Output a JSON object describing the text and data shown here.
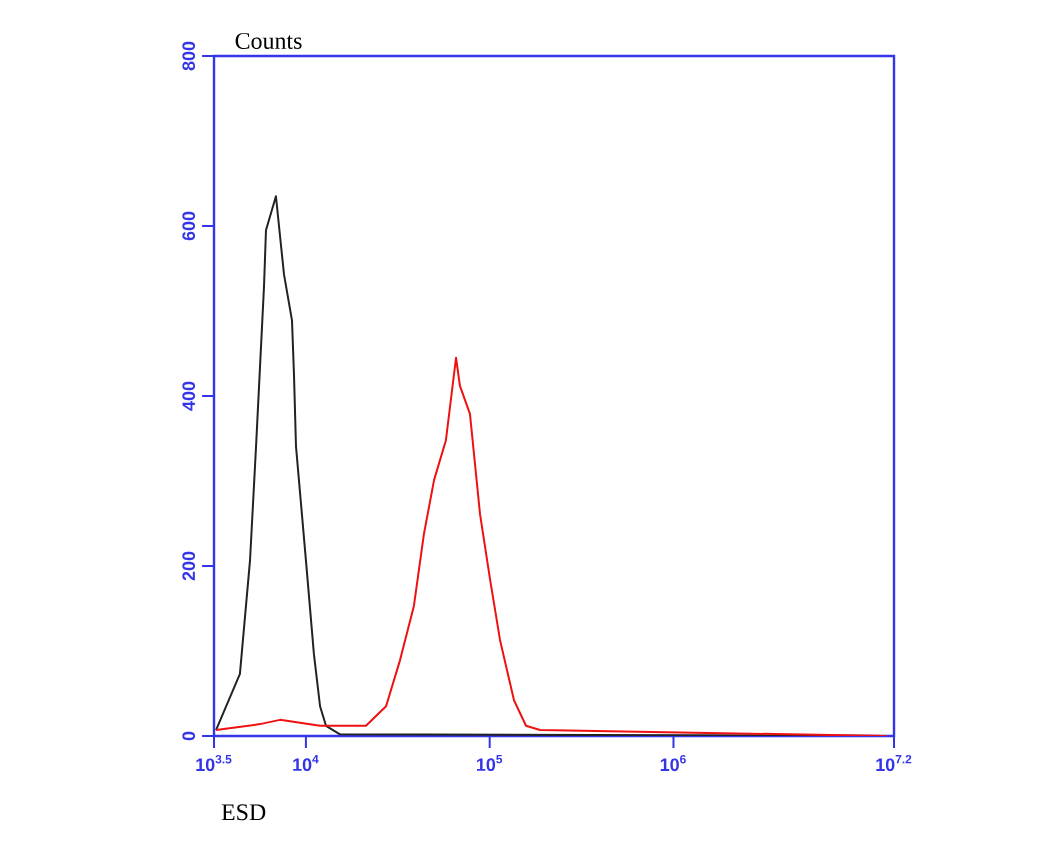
{
  "chart_data": {
    "type": "line",
    "xlabel": "ESD",
    "ylabel": "Counts",
    "log": "x",
    "xlim": [
      3162.3,
      15848932
    ],
    "xticks": [
      {
        "value": 3162.3,
        "label": "10$^{3.5}$"
      },
      {
        "value": 10000,
        "label": "10$^{4}$"
      },
      {
        "value": 100000,
        "label": "10$^{5}$"
      },
      {
        "value": 1000000,
        "label": "10$^{6}$"
      },
      {
        "value": 15848932,
        "label": "10$^{7.2}$"
      }
    ],
    "ylim": [
      0,
      800
    ],
    "yticks": [
      0,
      200,
      400,
      600,
      800
    ],
    "marker": "none",
    "line_style": "solid",
    "series": [
      {
        "color": "#222222",
        "x": [
          3243,
          4375,
          4966,
          5355,
          5916,
          6064,
          6870,
          7600,
          8400,
          8610,
          8830,
          10000,
          11060,
          11940,
          12860,
          15330,
          14500000
        ],
        "values": [
          7,
          73,
          207,
          341,
          529,
          595,
          635,
          543,
          489,
          426,
          341,
          207,
          96,
          35,
          12,
          2,
          0
        ]
      },
      {
        "color": "#ee1111",
        "x": [
          3243,
          5623,
          7230,
          11940,
          16520,
          21220,
          27300,
          32500,
          38700,
          43900,
          49800,
          57800,
          65600,
          68900,
          78100,
          88600,
          100500,
          113800,
          135600,
          157600,
          188000,
          14500000
        ],
        "values": [
          7,
          14,
          19,
          12,
          12,
          12,
          35,
          89,
          153,
          238,
          301,
          348,
          445,
          412,
          379,
          261,
          184,
          113,
          42,
          12,
          7,
          0
        ]
      }
    ]
  }
}
